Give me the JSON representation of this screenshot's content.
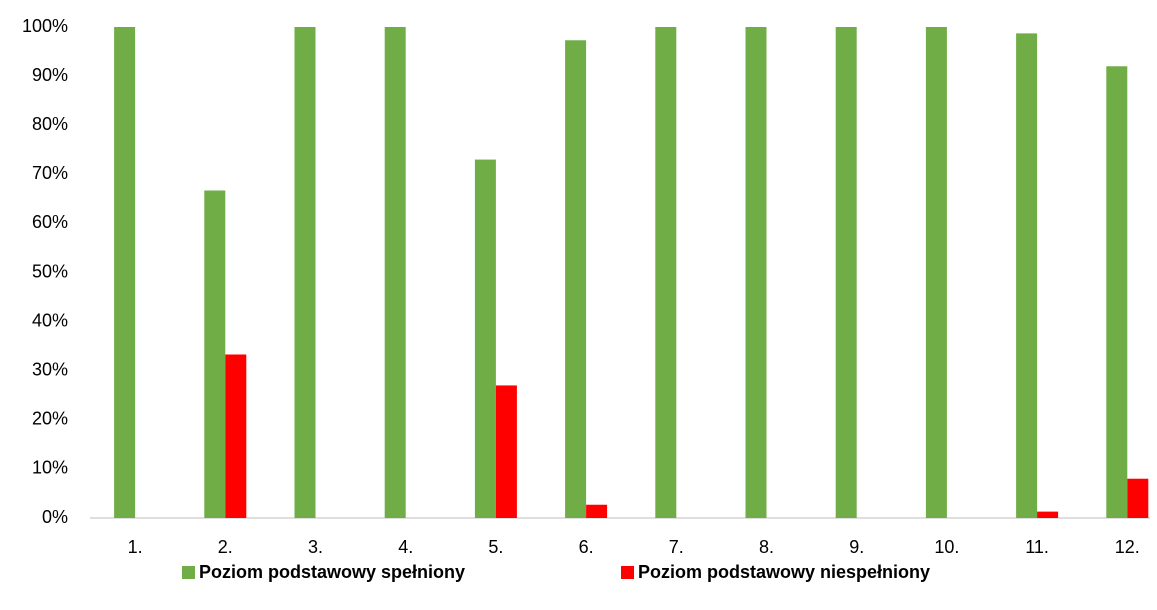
{
  "chart_data": {
    "type": "bar",
    "categories": [
      "1.",
      "2.",
      "3.",
      "4.",
      "5.",
      "6.",
      "7.",
      "8.",
      "9.",
      "10.",
      "11.",
      "12."
    ],
    "series": [
      {
        "name": "Poziom podstawowy spełniony",
        "color": "#70ad47",
        "values": [
          100,
          66.7,
          100,
          100,
          73,
          97.3,
          100,
          100,
          100,
          100,
          98.7,
          92
        ]
      },
      {
        "name": "Poziom podstawowy niespełniony",
        "color": "#ff0000",
        "values": [
          0,
          33.3,
          0,
          0,
          27,
          2.7,
          0,
          0,
          0,
          0,
          1.3,
          8
        ]
      }
    ],
    "ylim": [
      0,
      100
    ],
    "yticks": [
      {
        "value": 0,
        "label": "0%"
      },
      {
        "value": 10,
        "label": "10%"
      },
      {
        "value": 20,
        "label": "20%"
      },
      {
        "value": 30,
        "label": "30%"
      },
      {
        "value": 40,
        "label": "40%"
      },
      {
        "value": 50,
        "label": "50%"
      },
      {
        "value": 60,
        "label": "60%"
      },
      {
        "value": 70,
        "label": "70%"
      },
      {
        "value": 80,
        "label": "80%"
      },
      {
        "value": 90,
        "label": "90%"
      },
      {
        "value": 100,
        "label": "100%"
      }
    ],
    "grid": false,
    "legend": "bottom"
  }
}
